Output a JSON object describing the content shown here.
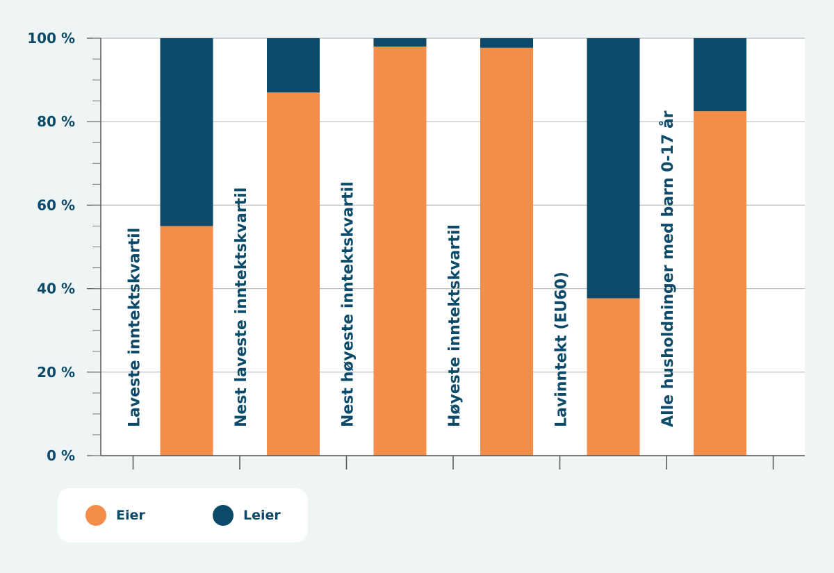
{
  "chart_data": {
    "type": "bar",
    "stacked": true,
    "categories": [
      "Laveste inntektskvartil",
      "Nest laveste inntektskvartil",
      "Nest høyeste inntektskvartil",
      "Høyeste inntektskvartil",
      "Lavinntekt (EU60)",
      "Alle husholdninger med barn 0-17 år"
    ],
    "series": [
      {
        "name": "Eier",
        "color": "#f58d4a",
        "values": [
          55,
          87,
          98,
          97.7,
          37.7,
          82.5
        ]
      },
      {
        "name": "Leier",
        "color": "#0c4a6a",
        "values": [
          45,
          13,
          2,
          2.3,
          62.3,
          17.5
        ]
      }
    ],
    "ylim": [
      0,
      100
    ],
    "yticks": [
      "0 %",
      "20 %",
      "40 %",
      "60 %",
      "80 %",
      "100 %"
    ],
    "grid": true,
    "legend_position": "bottom-left"
  }
}
